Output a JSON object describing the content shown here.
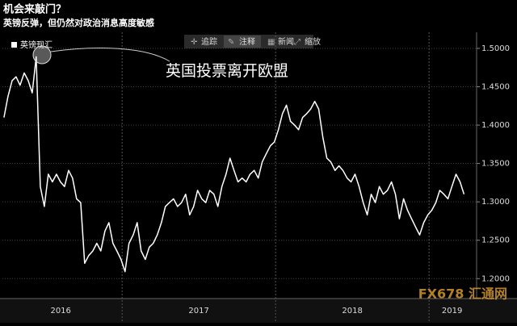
{
  "toolbar": [
    "追踪",
    "注释",
    "新闻",
    "缩放"
  ],
  "watermark": "FX678 汇通网",
  "chart_data": {
    "type": "line",
    "title": "机会来敲门？",
    "subtitle": "英镑反弹，但仍然对政治消息高度敏感",
    "annotations": [
      "英国投票离开欧盟"
    ],
    "x": [
      2016.23,
      2016.256,
      2016.283,
      2016.309,
      2016.335,
      2016.362,
      2016.388,
      2016.414,
      2016.44,
      2016.467,
      2016.493,
      2016.519,
      2016.546,
      2016.572,
      2016.598,
      2016.625,
      2016.651,
      2016.677,
      2016.703,
      2016.73,
      2016.756,
      2016.782,
      2016.809,
      2016.835,
      2016.861,
      2016.888,
      2016.914,
      2016.94,
      2016.966,
      2016.993,
      2017.019,
      2017.045,
      2017.072,
      2017.098,
      2017.124,
      2017.151,
      2017.177,
      2017.203,
      2017.229,
      2017.256,
      2017.282,
      2017.308,
      2017.335,
      2017.361,
      2017.387,
      2017.414,
      2017.44,
      2017.466,
      2017.492,
      2017.519,
      2017.545,
      2017.571,
      2017.598,
      2017.624,
      2017.65,
      2017.677,
      2017.703,
      2017.729,
      2017.755,
      2017.782,
      2017.808,
      2017.834,
      2017.861,
      2017.887,
      2017.913,
      2017.94,
      2017.966,
      2017.992,
      2018.018,
      2018.045,
      2018.071,
      2018.097,
      2018.124,
      2018.15,
      2018.176,
      2018.203,
      2018.229,
      2018.255,
      2018.281,
      2018.308,
      2018.334,
      2018.36,
      2018.387,
      2018.413,
      2018.439,
      2018.466,
      2018.492,
      2018.518,
      2018.544,
      2018.571,
      2018.597,
      2018.623,
      2018.65,
      2018.676,
      2018.702,
      2018.729,
      2018.755,
      2018.781,
      2018.807,
      2018.834,
      2018.86,
      2018.886,
      2018.913,
      2018.939,
      2018.965,
      2018.992,
      2019.018,
      2019.044,
      2019.07,
      2019.097,
      2019.123,
      2019.149,
      2019.176,
      2019.202,
      2019.228
    ],
    "series": [
      {
        "name": "英镑现汇",
        "color": "#ffffff",
        "values": [
          1.41,
          1.437,
          1.458,
          1.463,
          1.452,
          1.468,
          1.458,
          1.442,
          1.489,
          1.32,
          1.294,
          1.336,
          1.326,
          1.336,
          1.326,
          1.32,
          1.341,
          1.331,
          1.304,
          1.299,
          1.22,
          1.23,
          1.236,
          1.246,
          1.236,
          1.262,
          1.273,
          1.246,
          1.236,
          1.225,
          1.209,
          1.246,
          1.257,
          1.273,
          1.236,
          1.225,
          1.241,
          1.246,
          1.257,
          1.273,
          1.294,
          1.299,
          1.304,
          1.294,
          1.299,
          1.31,
          1.283,
          1.294,
          1.315,
          1.304,
          1.299,
          1.315,
          1.31,
          1.294,
          1.32,
          1.336,
          1.357,
          1.341,
          1.326,
          1.331,
          1.326,
          1.336,
          1.341,
          1.331,
          1.352,
          1.363,
          1.373,
          1.378,
          1.394,
          1.415,
          1.426,
          1.405,
          1.4,
          1.394,
          1.41,
          1.415,
          1.421,
          1.431,
          1.421,
          1.384,
          1.357,
          1.352,
          1.341,
          1.347,
          1.341,
          1.331,
          1.326,
          1.336,
          1.32,
          1.299,
          1.283,
          1.31,
          1.299,
          1.32,
          1.31,
          1.315,
          1.326,
          1.31,
          1.278,
          1.304,
          1.289,
          1.278,
          1.267,
          1.257,
          1.273,
          1.283,
          1.289,
          1.299,
          1.315,
          1.31,
          1.304,
          1.32,
          1.336,
          1.326,
          1.31
        ]
      }
    ],
    "xlim": [
      2016.22,
      2019.31
    ],
    "xticks": [
      {
        "value": 2016.6,
        "label": "2016"
      },
      {
        "value": 2017.5,
        "label": "2017"
      },
      {
        "value": 2018.5,
        "label": "2018"
      },
      {
        "value": 2019.15,
        "label": "2019"
      }
    ],
    "year_separators": [
      2017,
      2018,
      2019
    ],
    "ylim": [
      1.174,
      1.521
    ],
    "yticks": [
      {
        "value": 1.2,
        "label": "1.2000"
      },
      {
        "value": 1.25,
        "label": "1.2500"
      },
      {
        "value": 1.3,
        "label": "1.3000"
      },
      {
        "value": 1.35,
        "label": "1.3500"
      },
      {
        "value": 1.4,
        "label": "1.4000"
      },
      {
        "value": 1.45,
        "label": "1.4500"
      },
      {
        "value": 1.5,
        "label": "1.5000"
      }
    ],
    "grid": true
  }
}
